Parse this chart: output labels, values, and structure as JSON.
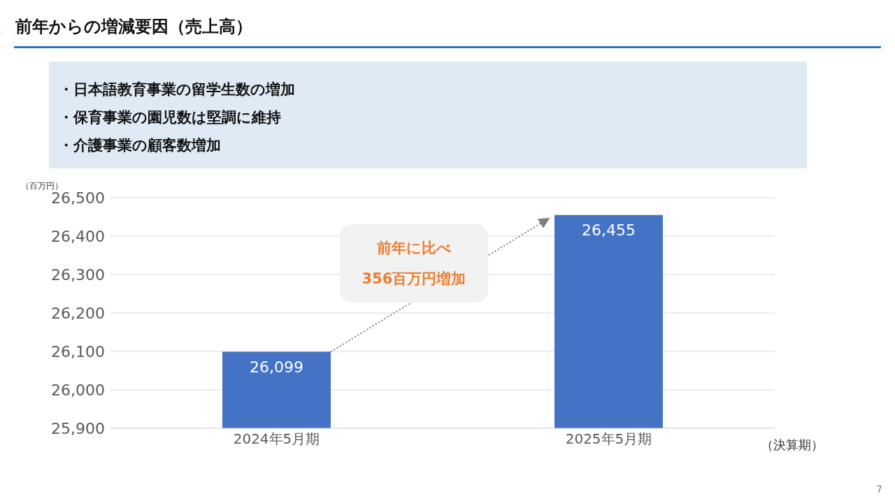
{
  "chart_data": {
    "type": "bar",
    "title": "前年からの増減要因（売上高）",
    "ylabel": "（百万円）",
    "xlabel": "（決算期）",
    "categories": [
      "2024年5月期",
      "2025年5月期"
    ],
    "values": [
      26099,
      26455
    ],
    "color": "#4472c4",
    "value_labels": [
      "26,099",
      "26,455"
    ],
    "ylim": [
      25900,
      26500
    ],
    "yticks": [
      {
        "value": 25900,
        "label": "25,900"
      },
      {
        "value": 26000,
        "label": "26,000"
      },
      {
        "value": 26100,
        "label": "26,100"
      },
      {
        "value": 26200,
        "label": "26,200"
      },
      {
        "value": 26300,
        "label": "26,300"
      },
      {
        "value": 26400,
        "label": "26,400"
      },
      {
        "value": 26500,
        "label": "26,500"
      }
    ],
    "grid": "y",
    "annotations": [
      "・日本語教育事業の留学生数の増加",
      "・保育事業の園児数は堅調に維持",
      "・介護事業の顧客数増加",
      "前年に比べ\n356百万円増加",
      "7"
    ]
  }
}
